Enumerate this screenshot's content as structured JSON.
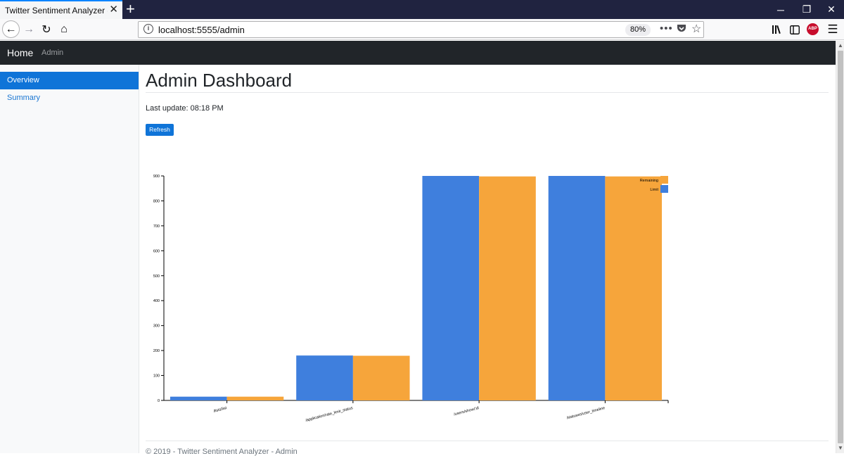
{
  "browser": {
    "tab_title": "Twitter Sentiment Analyzer - Admin",
    "url": "localhost:5555/admin",
    "zoom": "80%",
    "icons": [
      "close-icon",
      "plus-icon",
      "minimize-icon",
      "restore-icon",
      "window-close-icon",
      "back-icon",
      "forward-icon",
      "reload-icon",
      "home-icon",
      "info-icon",
      "more-icon",
      "pocket-icon",
      "star-icon",
      "library-icon",
      "sidebar-icon",
      "adblock-icon",
      "menu-icon"
    ],
    "abp_label": "ABP"
  },
  "app_nav": {
    "brand": "Home",
    "admin_link": "Admin"
  },
  "sidebar": {
    "items": [
      {
        "label": "Overview",
        "active": true
      },
      {
        "label": "Summary",
        "active": false
      }
    ]
  },
  "main": {
    "title": "Admin Dashboard",
    "last_update": "Last update: 08:18 PM",
    "refresh_label": "Refresh"
  },
  "footer": {
    "text": "© 2019 - Twitter Sentiment Analyzer - Admin"
  },
  "colors": {
    "limit": "#3f7fdd",
    "remaining": "#f6a53b",
    "accent": "#0f74d8",
    "navbar": "#212529"
  },
  "chart_data": {
    "type": "bar",
    "categories": [
      "/lists/list",
      "/application/rate_limit_status",
      "/users/show/:id",
      "/statuses/user_timeline"
    ],
    "series": [
      {
        "name": "Limit",
        "values": [
          15,
          180,
          900,
          900
        ],
        "color": "#3f7fdd"
      },
      {
        "name": "Remaining",
        "values": [
          15,
          179,
          898,
          898
        ],
        "color": "#f6a53b"
      }
    ],
    "ylim": [
      0,
      900
    ],
    "yticks": [
      0,
      100,
      200,
      300,
      400,
      500,
      600,
      700,
      800,
      900
    ],
    "legend": [
      "Remaining",
      "Limit"
    ],
    "legend_position": "top-right",
    "grid": false
  }
}
